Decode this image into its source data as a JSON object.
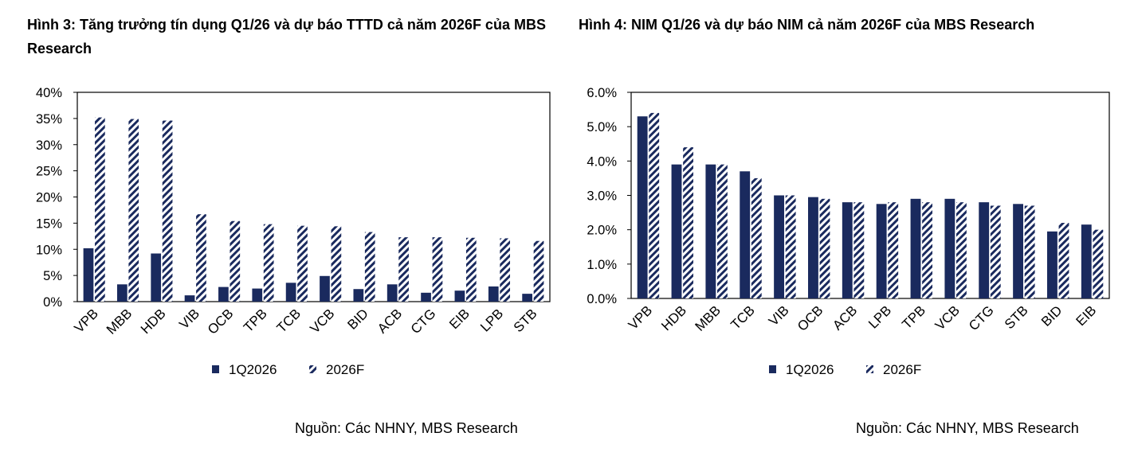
{
  "charts": [
    {
      "title": "Hình 3: Tăng trưởng tín dụng Q1/26 và dự báo TTTD cả năm 2026F của MBS Research",
      "source": "Nguồn: Các NHNY, MBS Research"
    },
    {
      "title": "Hình 4: NIM Q1/26 và dự báo NIM cả năm 2026F của MBS Research",
      "source": "Nguồn: Các NHNY, MBS Research"
    }
  ],
  "colors": {
    "series1": "#1a2a5e",
    "series2": "#1a2a5e"
  },
  "chart_data": [
    {
      "type": "bar",
      "categories": [
        "VPB",
        "MBB",
        "HDB",
        "VIB",
        "OCB",
        "TPB",
        "TCB",
        "VCB",
        "BID",
        "ACB",
        "CTG",
        "EIB",
        "LPB",
        "STB"
      ],
      "series": [
        {
          "name": "1Q2026",
          "values": [
            10.2,
            3.3,
            9.2,
            1.2,
            2.8,
            2.5,
            3.6,
            4.9,
            2.4,
            3.3,
            1.7,
            2.1,
            2.9,
            1.5
          ]
        },
        {
          "name": "2026F",
          "values": [
            35.2,
            34.9,
            34.6,
            16.7,
            15.4,
            14.8,
            14.5,
            14.4,
            13.3,
            12.3,
            12.3,
            12.2,
            12.1,
            11.6
          ]
        }
      ],
      "ylim": [
        0,
        40
      ],
      "yticks": [
        "0%",
        "5%",
        "10%",
        "15%",
        "20%",
        "25%",
        "30%",
        "35%",
        "40%"
      ],
      "grid": false,
      "legend": "bottom"
    },
    {
      "type": "bar",
      "categories": [
        "VPB",
        "HDB",
        "MBB",
        "TCB",
        "VIB",
        "OCB",
        "ACB",
        "LPB",
        "TPB",
        "VCB",
        "CTG",
        "STB",
        "BID",
        "EIB"
      ],
      "series": [
        {
          "name": "1Q2026",
          "values": [
            5.3,
            3.9,
            3.9,
            3.7,
            3.0,
            2.95,
            2.8,
            2.75,
            2.9,
            2.9,
            2.8,
            2.75,
            1.95,
            2.15
          ]
        },
        {
          "name": "2026F",
          "values": [
            5.4,
            4.4,
            3.9,
            3.5,
            3.0,
            2.9,
            2.8,
            2.8,
            2.8,
            2.8,
            2.7,
            2.7,
            2.2,
            2.0
          ]
        }
      ],
      "ylim": [
        0,
        6
      ],
      "yticks": [
        "0.0%",
        "1.0%",
        "2.0%",
        "3.0%",
        "4.0%",
        "5.0%",
        "6.0%"
      ],
      "grid": false,
      "legend": "bottom"
    }
  ]
}
